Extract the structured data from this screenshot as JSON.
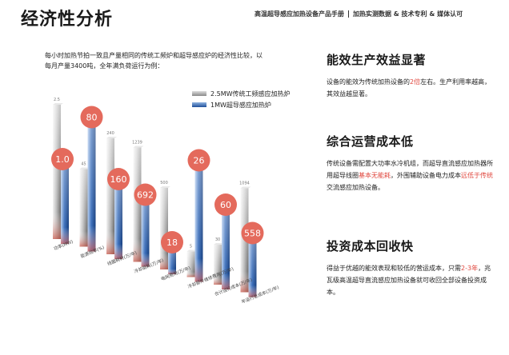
{
  "header": {
    "title": "经济性分析",
    "subtitle_left": "高温超导感应加热设备产品手册",
    "subtitle_right": "加热实测数据 & 技术专利 & 媒体认可"
  },
  "intro": {
    "line1": "每小时加热节拍一致且产量相同的传统工频炉和超导感应炉的经济性比较，以",
    "line2": "每月产量3400吨，全年满负荷运行为例："
  },
  "chart_data": {
    "type": "bar",
    "categories": [
      "功率(MW)",
      "能源效率(%)",
      "线圈耗材(万/年)",
      "冷却能耗(万/年)",
      "电网费用(万/年)",
      "冷却部件维修费用(万/年)",
      "合计运行成本(万/年)",
      "年运行总成本(万/年)"
    ],
    "series": [
      {
        "name": "2.5MW传统工频感应加热炉",
        "values": [
          2.5,
          45,
          240,
          1239,
          500,
          5,
          30,
          1094
        ],
        "labels": [
          "2.5",
          "45",
          "240",
          "1239",
          "500",
          "5",
          "30",
          "1094"
        ]
      },
      {
        "name": "1MW超导感应加热炉",
        "values": [
          1.0,
          80,
          160,
          692,
          18,
          26,
          60,
          558
        ],
        "labels": [
          "1.0",
          "80",
          "160",
          "692",
          "18",
          "26",
          "60",
          "558"
        ]
      }
    ],
    "colors": {
      "gray": "#9a9a9a",
      "blue": "#2a5ea8",
      "bubble": "#e46a5c"
    }
  },
  "sections": [
    {
      "title": "能效生产效益显著",
      "parts": [
        "设备的能效为传统加热设备的",
        "2倍",
        "左右。生产利用率越高，其效益越显著。"
      ]
    },
    {
      "title": "综合运营成本低",
      "parts": [
        "传统设备需配置大功率水冷机组，而超导直流感应加热器所用超导线圈",
        "基本无能耗",
        "，外围辅助设备电力成本",
        "远低于传统",
        "交流感应加热设备。"
      ]
    },
    {
      "title": "投资成本回收快",
      "parts": [
        "得益于优越的能效表现和较低的营运成本，只需",
        "2-3年",
        "，兆瓦级高温超导直流感应加热设备就可收回全部设备投资成本。"
      ]
    }
  ]
}
